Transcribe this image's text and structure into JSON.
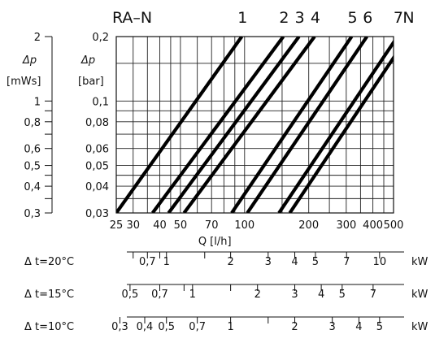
{
  "chart_data": {
    "type": "line",
    "title": "RA–N",
    "x_scale": "log",
    "y_scale": "log",
    "x_axis": {
      "label": "Q  [l/h]",
      "lim": [
        25,
        500
      ],
      "ticks": [
        25,
        30,
        40,
        50,
        70,
        100,
        200,
        300,
        400,
        500
      ],
      "tick_labels": [
        "25",
        "30",
        "40",
        "50",
        "70",
        "100",
        "200",
        "300",
        "400",
        "500"
      ],
      "grid": [
        25,
        30,
        35,
        40,
        45,
        50,
        60,
        70,
        80,
        90,
        100,
        150,
        200,
        250,
        300,
        350,
        400,
        450,
        500
      ]
    },
    "y_axis_bar": {
      "label": "Δp",
      "unit": "[bar]",
      "lim": [
        0.03,
        0.2
      ],
      "ticks": [
        0.03,
        0.04,
        0.05,
        0.06,
        0.08,
        0.1,
        0.2
      ],
      "tick_labels": [
        "0,03",
        "0,04",
        "0,05",
        "0,06",
        "0,08",
        "0,1",
        "0,2"
      ],
      "grid": [
        0.03,
        0.035,
        0.04,
        0.045,
        0.05,
        0.06,
        0.07,
        0.08,
        0.09,
        0.1,
        0.15,
        0.2
      ]
    },
    "y_axis_mws": {
      "label": "Δp",
      "unit": "[mWs]",
      "ticks": [
        0.3,
        0.4,
        0.5,
        0.6,
        0.8,
        1,
        2
      ],
      "tick_labels": [
        "0,3",
        "0,4",
        "0,5",
        "0,6",
        "0,8",
        "1",
        "2"
      ],
      "minor": [
        0.35,
        0.45,
        0.7,
        0.9
      ]
    },
    "series": [
      {
        "name": "1",
        "points": [
          [
            25,
            0.03
          ],
          [
            97,
            0.2
          ]
        ]
      },
      {
        "name": "2",
        "points": [
          [
            37,
            0.03
          ],
          [
            152,
            0.2
          ]
        ]
      },
      {
        "name": "3",
        "points": [
          [
            44,
            0.03
          ],
          [
            180,
            0.2
          ]
        ]
      },
      {
        "name": "4",
        "points": [
          [
            52,
            0.03
          ],
          [
            213,
            0.2
          ]
        ]
      },
      {
        "name": "5",
        "points": [
          [
            87,
            0.03
          ],
          [
            318,
            0.2
          ]
        ]
      },
      {
        "name": "6",
        "points": [
          [
            103,
            0.03
          ],
          [
            375,
            0.2
          ]
        ]
      },
      {
        "name": "7",
        "points": [
          [
            145,
            0.03
          ],
          [
            522,
            0.2
          ]
        ]
      },
      {
        "name": "N",
        "points": [
          [
            163,
            0.03
          ],
          [
            583,
            0.2
          ]
        ]
      }
    ],
    "temperature_scales": [
      {
        "label": "Δ t=20°C",
        "unit": "kW",
        "ticks": [
          {
            "q": 30,
            "label": ""
          },
          {
            "q": 35,
            "label": "0,7"
          },
          {
            "q": 40,
            "label": ""
          },
          {
            "q": 43,
            "label": "1"
          },
          {
            "q": 65,
            "label": ""
          },
          {
            "q": 86,
            "label": "2"
          },
          {
            "q": 129,
            "label": "3"
          },
          {
            "q": 172,
            "label": "4"
          },
          {
            "q": 215,
            "label": "5"
          },
          {
            "q": 301,
            "label": "7"
          },
          {
            "q": 430,
            "label": "10"
          }
        ]
      },
      {
        "label": "Δ t=15°C",
        "unit": "kW",
        "ticks": [
          {
            "q": 29,
            "label": "0,5"
          },
          {
            "q": 40,
            "label": "0,7"
          },
          {
            "q": 52,
            "label": ""
          },
          {
            "q": 57,
            "label": "1"
          },
          {
            "q": 86,
            "label": ""
          },
          {
            "q": 115,
            "label": "2"
          },
          {
            "q": 172,
            "label": "3"
          },
          {
            "q": 229,
            "label": "4"
          },
          {
            "q": 287,
            "label": "5"
          },
          {
            "q": 401,
            "label": "7"
          }
        ]
      },
      {
        "label": "Δ t=10°C",
        "unit": "kW",
        "ticks": [
          {
            "q": 26,
            "label": "0,3"
          },
          {
            "q": 34,
            "label": "0,4"
          },
          {
            "q": 43,
            "label": "0,5"
          },
          {
            "q": 60,
            "label": "0,7"
          },
          {
            "q": 86,
            "label": "1"
          },
          {
            "q": 129,
            "label": ""
          },
          {
            "q": 172,
            "label": "2"
          },
          {
            "q": 258,
            "label": "3"
          },
          {
            "q": 344,
            "label": "4"
          },
          {
            "q": 430,
            "label": "5"
          }
        ]
      }
    ]
  }
}
